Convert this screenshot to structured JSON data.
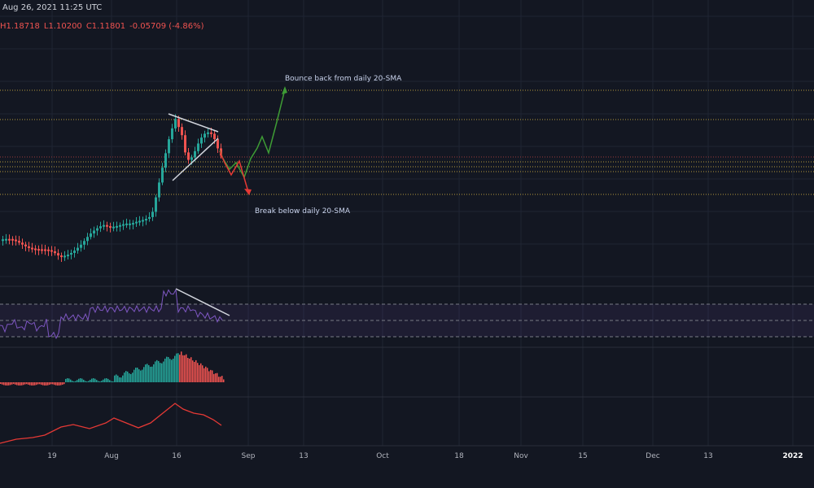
{
  "header": {
    "datetime": "Aug 26, 2021 11:25 UTC",
    "high": "H1.18718",
    "low": "L1.10200",
    "close": "C1.11801",
    "change": "-0.05709 (-4.86%)"
  },
  "colors": {
    "background": "#131722",
    "grid": "#1f2433",
    "candle_up": "#26a69a",
    "candle_down": "#ef5350",
    "level_line": "#b59a3c",
    "rsi_line": "#7e57c2",
    "macd_line": "#e53935",
    "bullish_path": "#3e9c35",
    "bearish_path": "#e53935",
    "trendline": "#d1d4dc"
  },
  "chart_data": [
    {
      "type": "candlestick",
      "panel": "price",
      "annotations": [
        {
          "text": "Bounce back from daily 20-SMA",
          "color": "#3e9c35"
        },
        {
          "text": "Break below daily 20-SMA",
          "color": "#e53935"
        }
      ],
      "x_tick_labels": [
        "19",
        "Aug",
        "16",
        "Sep",
        "13",
        "Oct",
        "18",
        "Nov",
        "15",
        "Dec",
        "13",
        "2022"
      ]
    },
    {
      "type": "line",
      "panel": "rsi",
      "bands": "dashed"
    },
    {
      "type": "bar",
      "panel": "macd-histogram"
    },
    {
      "type": "line",
      "panel": "oscillator"
    }
  ]
}
